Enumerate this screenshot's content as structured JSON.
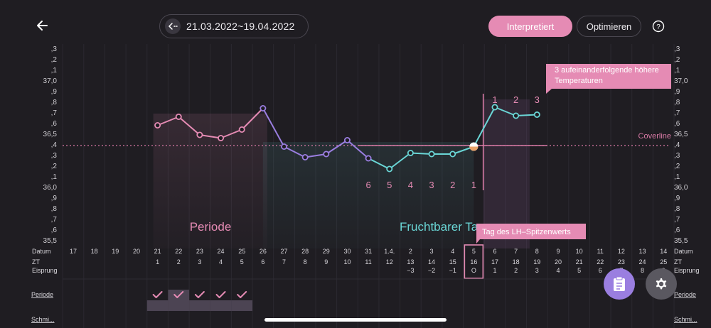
{
  "header": {
    "date_range": "21.03.2022~19.04.2022",
    "interpret_label": "Interpretiert",
    "optimize_label": "Optimieren"
  },
  "colors": {
    "pink": "#e58bb4",
    "purple": "#9a7ee0",
    "teal": "#6ad6d6",
    "background": "#1f1d22"
  },
  "y_axis_labels": [
    ",3",
    ",2",
    ",1",
    "37,0",
    ",9",
    ",8",
    ",7",
    ",6",
    "36,5",
    ",4",
    ",3",
    ",2",
    ",1",
    "36,0",
    ",9",
    ",8",
    ",7",
    ",6",
    "35,5"
  ],
  "chart": {
    "coverline_label": "Coverline",
    "coverline_value": 36.36,
    "callout_high_temps": "3 aufeinanderfolgende höhere Temperaturen",
    "callout_lh": "Tag des LH–Spitzenwerts",
    "periode_label": "Periode",
    "fertile_label": "Fruchtbarer Ta",
    "low_count_labels": [
      "6",
      "5",
      "4",
      "3",
      "2",
      "1"
    ],
    "high_count_labels": [
      "1",
      "2",
      "3"
    ]
  },
  "chart_data": {
    "type": "line",
    "ylabel": "",
    "ylim": [
      35.5,
      37.3
    ],
    "x": [
      "21",
      "22",
      "23",
      "24",
      "25",
      "26",
      "27",
      "28",
      "29",
      "30",
      "31",
      "1.4.",
      "2",
      "3",
      "4",
      "5",
      "6",
      "7",
      "8"
    ],
    "series": [
      {
        "values": [
          36.55,
          36.63,
          36.46,
          36.43,
          36.51,
          36.71,
          36.35,
          36.25,
          36.28,
          36.41,
          36.24,
          36.14,
          36.29,
          36.28,
          36.28,
          36.35,
          36.72,
          36.64,
          36.65
        ]
      }
    ]
  },
  "table": {
    "row_labels": {
      "datum": "Datum",
      "zt": "ZT",
      "eisprung": "Eisprung",
      "periode": "Periode",
      "schmi": "Schmi..."
    },
    "datum": [
      "17",
      "18",
      "19",
      "20",
      "21",
      "22",
      "23",
      "24",
      "25",
      "26",
      "27",
      "28",
      "29",
      "30",
      "31",
      "1.4.",
      "2",
      "3",
      "4",
      "5",
      "6",
      "7",
      "8",
      "9",
      "10",
      "11",
      "12",
      "13",
      "14"
    ],
    "zt": [
      "",
      "",
      "",
      "",
      "1",
      "2",
      "3",
      "4",
      "5",
      "6",
      "7",
      "8",
      "9",
      "10",
      "11",
      "12",
      "13",
      "14",
      "15",
      "16",
      "17",
      "18",
      "19",
      "20",
      "21",
      "22",
      "23",
      "24",
      "25"
    ],
    "eisprung": [
      "",
      "",
      "",
      "",
      "",
      "",
      "",
      "",
      "",
      "",
      "",
      "",
      "",
      "",
      "",
      "",
      "−3",
      "−2",
      "−1",
      "O",
      "1",
      "2",
      "3",
      "4",
      "5",
      "6",
      "7",
      "8",
      "9"
    ],
    "periode_marked": [
      false,
      false,
      false,
      false,
      true,
      true,
      true,
      true,
      true,
      false,
      false,
      false,
      false,
      false,
      false,
      false,
      false,
      false,
      false,
      false,
      false,
      false,
      false,
      false,
      false,
      false,
      false,
      false,
      false
    ]
  },
  "icons": [
    "arrow-left-icon",
    "calendar-arrows-icon",
    "help-icon",
    "notes-icon",
    "gear-icon",
    "check-icon"
  ]
}
